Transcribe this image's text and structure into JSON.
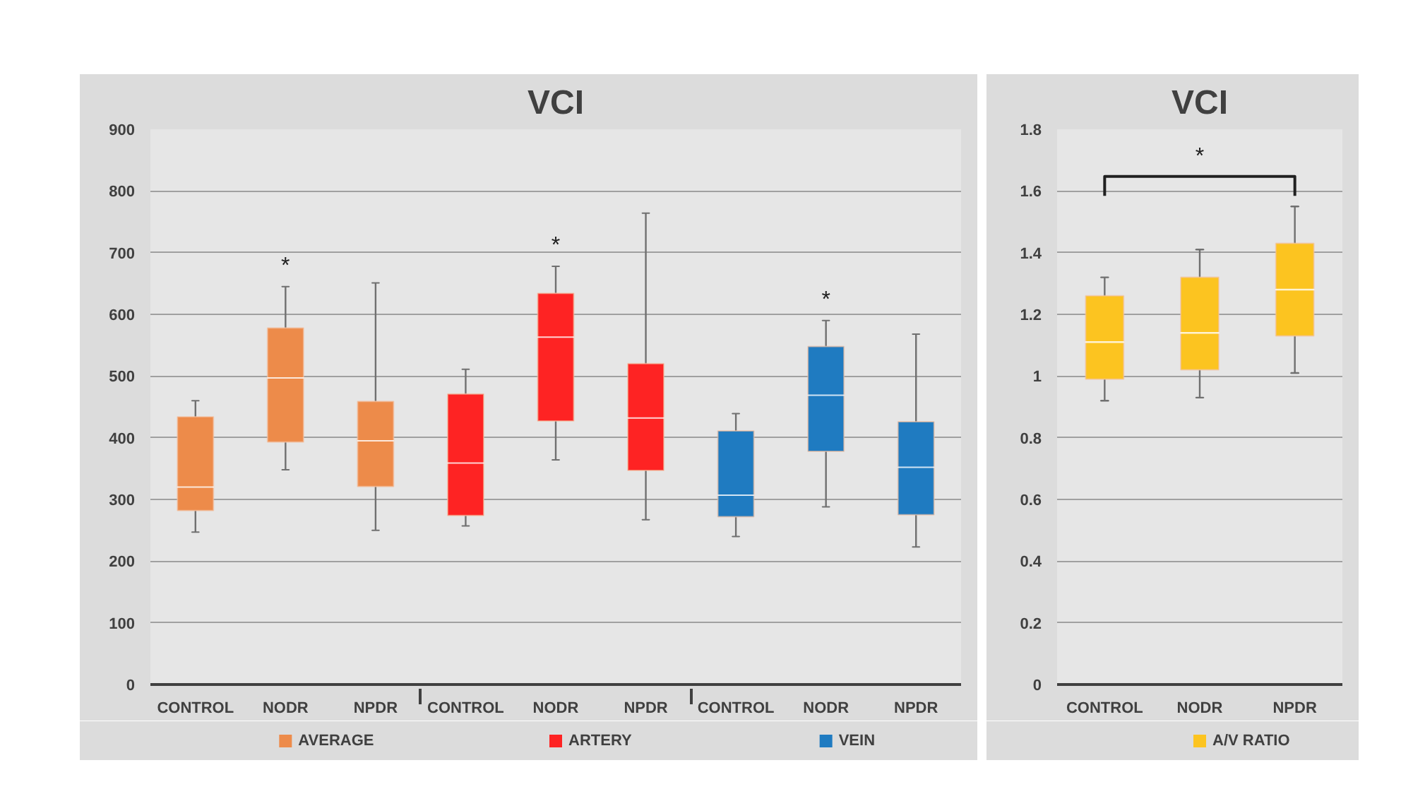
{
  "chart_data": [
    {
      "type": "box",
      "title": "VCI",
      "categories": [
        "CONTROL",
        "NODR",
        "NPDR",
        "CONTROL",
        "NODR",
        "NPDR",
        "CONTROL",
        "NODR",
        "NPDR"
      ],
      "series": [
        {
          "name": "AVERAGE",
          "color": "#ed8b4a",
          "boxes": [
            {
              "low": 247,
              "q1": 282,
              "median": 320,
              "q3": 434,
              "high": 460
            },
            {
              "low": 348,
              "q1": 393,
              "median": 497,
              "q3": 578,
              "high": 645
            },
            {
              "low": 250,
              "q1": 321,
              "median": 395,
              "q3": 459,
              "high": 651
            },
            null,
            null,
            null,
            null,
            null,
            null
          ]
        },
        {
          "name": "ARTERY",
          "color": "#fe2323",
          "boxes": [
            null,
            null,
            null,
            {
              "low": 257,
              "q1": 274,
              "median": 359,
              "q3": 471,
              "high": 511
            },
            {
              "low": 364,
              "q1": 427,
              "median": 563,
              "q3": 634,
              "high": 678
            },
            {
              "low": 267,
              "q1": 347,
              "median": 432,
              "q3": 520,
              "high": 764
            },
            null,
            null,
            null
          ]
        },
        {
          "name": "VEIN",
          "color": "#1f7bc1",
          "boxes": [
            null,
            null,
            null,
            null,
            null,
            null,
            {
              "low": 240,
              "q1": 272,
              "median": 307,
              "q3": 411,
              "high": 439
            },
            {
              "low": 288,
              "q1": 378,
              "median": 469,
              "q3": 548,
              "high": 590
            },
            {
              "low": 223,
              "q1": 275,
              "median": 352,
              "q3": 426,
              "high": 568
            }
          ]
        }
      ],
      "ylim": [
        0,
        900
      ],
      "yticks": [
        0,
        100,
        200,
        300,
        400,
        500,
        600,
        700,
        800,
        900
      ],
      "grid": "y",
      "legend": "bottom",
      "annotations": [
        "*",
        "*",
        "*"
      ]
    },
    {
      "type": "box",
      "title": "VCI",
      "categories": [
        "CONTROL",
        "NODR",
        "NPDR"
      ],
      "series": [
        {
          "name": "A/V RATIO",
          "color": "#fcc420",
          "boxes": [
            {
              "low": 0.92,
              "q1": 0.99,
              "median": 1.11,
              "q3": 1.26,
              "high": 1.32
            },
            {
              "low": 0.93,
              "q1": 1.02,
              "median": 1.14,
              "q3": 1.32,
              "high": 1.41
            },
            {
              "low": 1.01,
              "q1": 1.13,
              "median": 1.28,
              "q3": 1.43,
              "high": 1.55
            }
          ]
        }
      ],
      "ylim": [
        0,
        1.8
      ],
      "yticks": [
        0,
        0.2,
        0.4,
        0.6,
        0.8,
        1,
        1.2,
        1.4,
        1.6,
        1.8
      ],
      "grid": "y",
      "legend": "bottom",
      "annotations": [
        "*"
      ]
    }
  ]
}
